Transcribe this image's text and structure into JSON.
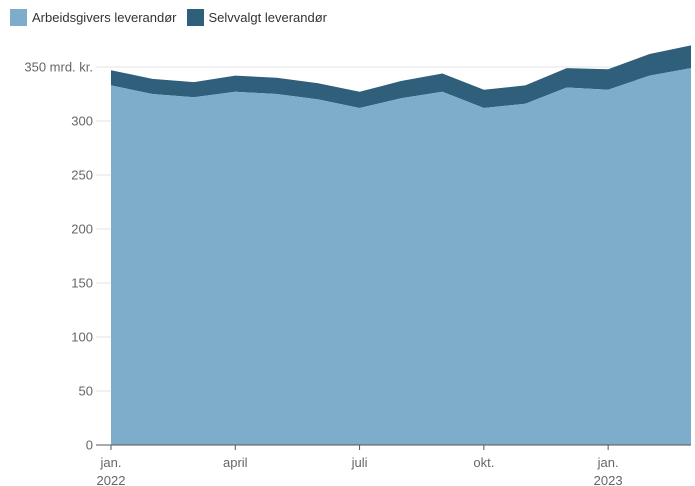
{
  "legend": [
    {
      "label": "Arbeidsgivers leverandør",
      "color": "#7eaccb"
    },
    {
      "label": "Selvvalgt leverandør",
      "color": "#2f5f7a"
    }
  ],
  "chart_data": {
    "type": "area",
    "stacked": true,
    "x": [
      "2022-01",
      "2022-02",
      "2022-03",
      "2022-04",
      "2022-05",
      "2022-06",
      "2022-07",
      "2022-08",
      "2022-09",
      "2022-10",
      "2022-11",
      "2022-12",
      "2023-01",
      "2023-02",
      "2023-03"
    ],
    "series": [
      {
        "name": "Arbeidsgivers leverandør",
        "color": "#7eaccb",
        "values": [
          333,
          325,
          322,
          327,
          325,
          320,
          312,
          321,
          327,
          312,
          316,
          331,
          329,
          342,
          349
        ]
      },
      {
        "name": "Selvvalgt leverandør",
        "color": "#2f5f7a",
        "values": [
          14,
          14,
          14,
          15,
          15,
          15,
          15,
          16,
          17,
          17,
          17,
          18,
          19,
          20,
          21
        ]
      }
    ],
    "yticks": [
      {
        "value": 0,
        "label": "0"
      },
      {
        "value": 50,
        "label": "50"
      },
      {
        "value": 100,
        "label": "100"
      },
      {
        "value": 150,
        "label": "150"
      },
      {
        "value": 200,
        "label": "200"
      },
      {
        "value": 250,
        "label": "250"
      },
      {
        "value": 300,
        "label": "300"
      },
      {
        "value": 350,
        "label": "350 mrd. kr."
      }
    ],
    "xticks": [
      {
        "index": 0,
        "line1": "jan.",
        "line2": "2022"
      },
      {
        "index": 3,
        "line1": "april",
        "line2": ""
      },
      {
        "index": 6,
        "line1": "juli",
        "line2": ""
      },
      {
        "index": 9,
        "line1": "okt.",
        "line2": ""
      },
      {
        "index": 12,
        "line1": "jan.",
        "line2": "2023"
      }
    ],
    "ylim": [
      0,
      350
    ],
    "grid": "horizontal",
    "legend_position": "top-left"
  }
}
